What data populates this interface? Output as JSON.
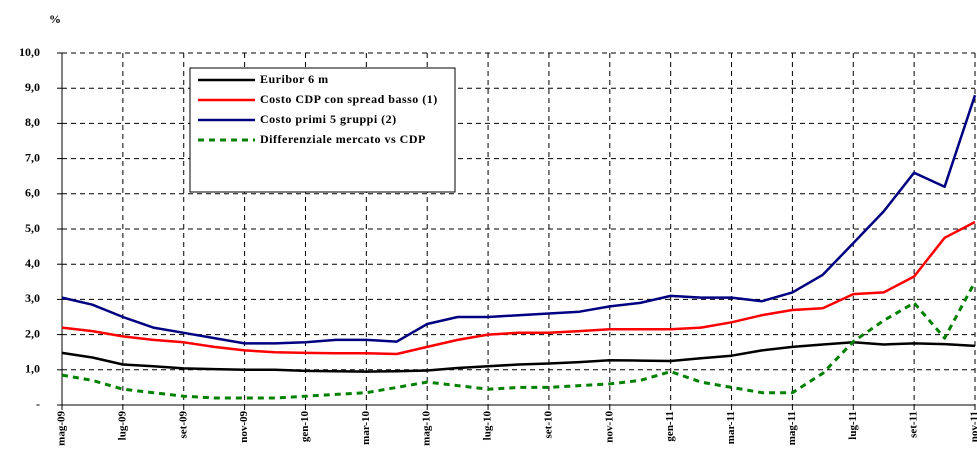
{
  "chart_data": {
    "type": "line",
    "y_label": "%",
    "categories": [
      "mag-09",
      null,
      "lug-09",
      null,
      "set-09",
      null,
      "nov-09",
      null,
      "gen-10",
      null,
      "mar-10",
      null,
      "mag-10",
      null,
      "lug-10",
      null,
      "set-10",
      null,
      "nov-10",
      null,
      "gen-11",
      null,
      "mar-11",
      null,
      "mag-11",
      null,
      "lug-11",
      null,
      "set-11",
      null,
      "nov-11"
    ],
    "series": [
      {
        "name": "Euribor 6 m",
        "color": "#000000",
        "dashed": false,
        "values": [
          1.48,
          1.35,
          1.15,
          1.1,
          1.04,
          1.02,
          1.0,
          1.0,
          0.97,
          0.96,
          0.95,
          0.96,
          0.98,
          1.05,
          1.1,
          1.15,
          1.18,
          1.22,
          1.27,
          1.26,
          1.25,
          1.33,
          1.4,
          1.55,
          1.65,
          1.72,
          1.78,
          1.72,
          1.75,
          1.73,
          1.68
        ]
      },
      {
        "name": "Costo CDP con spread basso (1)",
        "color": "#ff0000",
        "dashed": false,
        "values": [
          2.2,
          2.1,
          1.95,
          1.85,
          1.78,
          1.65,
          1.55,
          1.5,
          1.48,
          1.47,
          1.47,
          1.45,
          1.65,
          1.85,
          2.0,
          2.05,
          2.05,
          2.1,
          2.15,
          2.15,
          2.15,
          2.2,
          2.35,
          2.55,
          2.7,
          2.75,
          3.15,
          3.2,
          3.65,
          4.75,
          5.2
        ]
      },
      {
        "name": "Costo primi 5 gruppi (2)",
        "color": "#000080",
        "dashed": false,
        "values": [
          3.05,
          2.85,
          2.5,
          2.2,
          2.05,
          1.9,
          1.75,
          1.75,
          1.78,
          1.85,
          1.85,
          1.8,
          2.3,
          2.5,
          2.5,
          2.55,
          2.6,
          2.65,
          2.8,
          2.9,
          3.1,
          3.05,
          3.05,
          2.95,
          3.2,
          3.7,
          4.6,
          5.5,
          6.6,
          6.2,
          8.8
        ]
      },
      {
        "name": "Differenziale mercato vs CDP",
        "color": "#008000",
        "dashed": true,
        "values": [
          0.85,
          0.7,
          0.45,
          0.35,
          0.25,
          0.2,
          0.2,
          0.2,
          0.25,
          0.3,
          0.35,
          0.5,
          0.65,
          0.55,
          0.45,
          0.5,
          0.5,
          0.55,
          0.6,
          0.7,
          0.95,
          0.65,
          0.5,
          0.35,
          0.35,
          0.9,
          1.8,
          2.4,
          2.9,
          1.9,
          3.5
        ]
      }
    ],
    "ylim": [
      0,
      10
    ],
    "yticks": [
      {
        "value": 0,
        "label": "-"
      },
      {
        "value": 1,
        "label": "1,0"
      },
      {
        "value": 2,
        "label": "2,0"
      },
      {
        "value": 3,
        "label": "3,0"
      },
      {
        "value": 4,
        "label": "4,0"
      },
      {
        "value": 5,
        "label": "5,0"
      },
      {
        "value": 6,
        "label": "6,0"
      },
      {
        "value": 7,
        "label": "7,0"
      },
      {
        "value": 8,
        "label": "8,0"
      },
      {
        "value": 9,
        "label": "9,0"
      },
      {
        "value": 10,
        "label": "10,0"
      }
    ],
    "grid": true,
    "legend": "top-left"
  }
}
